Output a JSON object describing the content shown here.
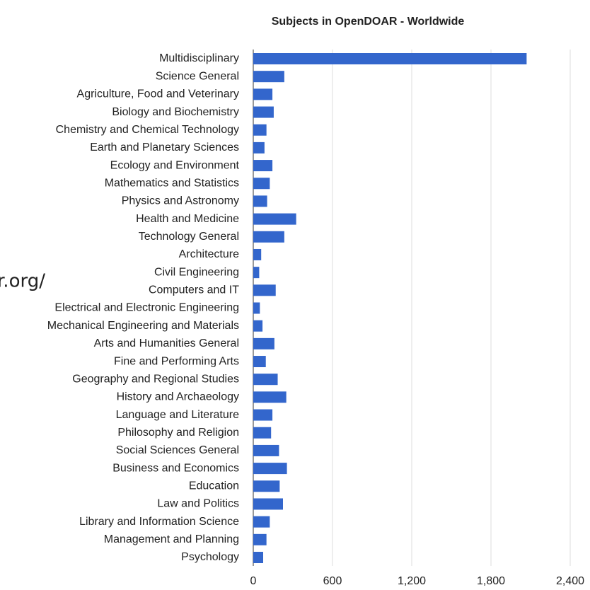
{
  "chart_data": {
    "type": "bar",
    "orientation": "horizontal",
    "title": "Subjects in OpenDOAR - Worldwide",
    "annotations": [
      "r.org/"
    ],
    "categories": [
      "Multidisciplinary",
      "Science General",
      "Agriculture, Food and Veterinary",
      "Biology and Biochemistry",
      "Chemistry and Chemical Technology",
      "Earth and Planetary Sciences",
      "Ecology and Environment",
      "Mathematics and Statistics",
      "Physics and Astronomy",
      "Health and Medicine",
      "Technology General",
      "Architecture",
      "Civil Engineering",
      "Computers and IT",
      "Electrical and Electronic Engineering",
      "Mechanical Engineering and Materials",
      "Arts and Humanities General",
      "Fine and Performing Arts",
      "Geography and Regional Studies",
      "History and Archaeology",
      "Language and Literature",
      "Philosophy and Religion",
      "Social Sciences General",
      "Business and Economics",
      "Education",
      "Law and Politics",
      "Library and Information Science",
      "Management and Planning",
      "Psychology"
    ],
    "values": [
      2070,
      235,
      145,
      155,
      100,
      85,
      145,
      125,
      105,
      325,
      235,
      60,
      45,
      170,
      50,
      70,
      160,
      95,
      185,
      250,
      145,
      135,
      195,
      255,
      200,
      225,
      125,
      100,
      75
    ],
    "color": "#3366cc",
    "xlim": [
      0,
      2400
    ],
    "xticks": [
      0,
      600,
      {
        "value": 1200,
        "label": "1,200"
      },
      {
        "value": 1800,
        "label": "1,800"
      },
      {
        "value": 2400,
        "label": "2,400"
      }
    ],
    "grid": true
  }
}
